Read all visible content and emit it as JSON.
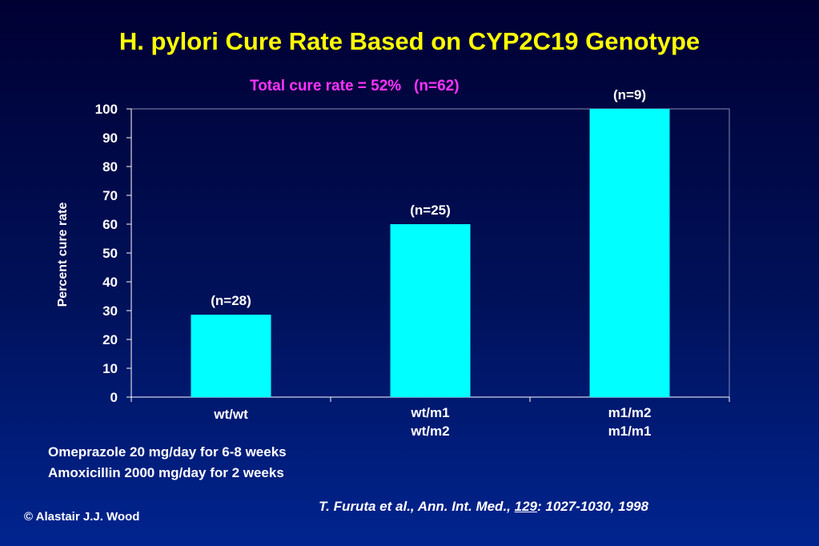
{
  "slide": {
    "title": "H. pylori Cure Rate Based on CYP2C19 Genotype",
    "subtitle": "Total cure rate = 52%   (n=62)",
    "notes": [
      "Omeprazole 20 mg/day for 6-8 weeks",
      "Amoxicillin 2000 mg/day for 2 weeks"
    ],
    "citation": {
      "prefix": "T. Furuta et al., Ann. Int. Med., ",
      "volume": "129",
      "suffix": ": 1027-1030, 1998"
    },
    "copyright": "© Alastair J.J. Wood"
  },
  "colors": {
    "title": "#ffff00",
    "subtitle": "#ff33ff",
    "bar": "#00ffff",
    "text": "#ffffff"
  },
  "chart_data": {
    "type": "bar",
    "categories": [
      [
        "wt/wt"
      ],
      [
        "wt/m1",
        "wt/m2"
      ],
      [
        "m1/m2",
        "m1/m1"
      ]
    ],
    "values": [
      28.6,
      60,
      100
    ],
    "bar_labels": [
      "(n=28)",
      "(n=25)",
      "(n=9)"
    ],
    "ylabel": "Percent cure rate",
    "xlabel": "",
    "ylim": [
      0,
      100
    ],
    "yticks": [
      0,
      10,
      20,
      30,
      40,
      50,
      60,
      70,
      80,
      90,
      100
    ],
    "grid": false,
    "legend": "none"
  }
}
